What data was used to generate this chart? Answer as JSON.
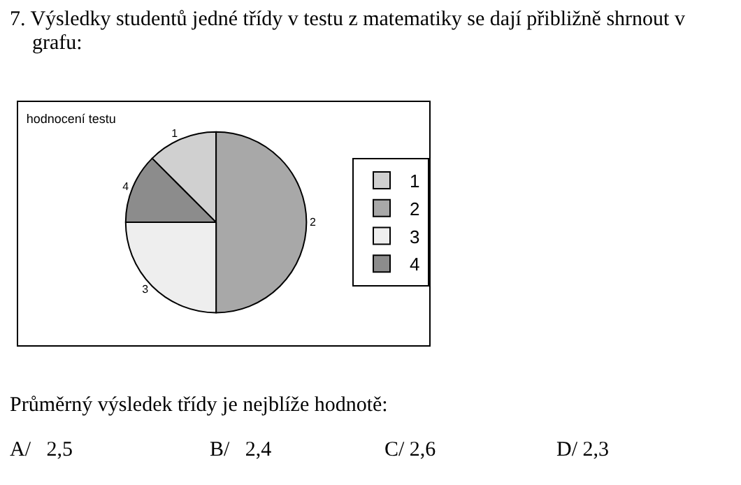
{
  "chart_data": {
    "type": "pie",
    "title": "hodnocení testu",
    "categories": [
      "1",
      "2",
      "3",
      "4"
    ],
    "values": [
      12.5,
      50,
      25,
      12.5
    ],
    "colors": [
      "#d0d0d0",
      "#a8a8a8",
      "#eeeeee",
      "#8c8c8c"
    ],
    "legend": "right",
    "annotations": [
      "7. Výsledky studentů jedné třídy v testu z matematiky se dají přibližně shrnout v grafu:",
      "Průměrný výsledek třídy je nejblíže hodnotě:",
      "A/   2,5",
      "B/   2,4",
      "C/ 2,6",
      "D/ 2,3"
    ]
  }
}
